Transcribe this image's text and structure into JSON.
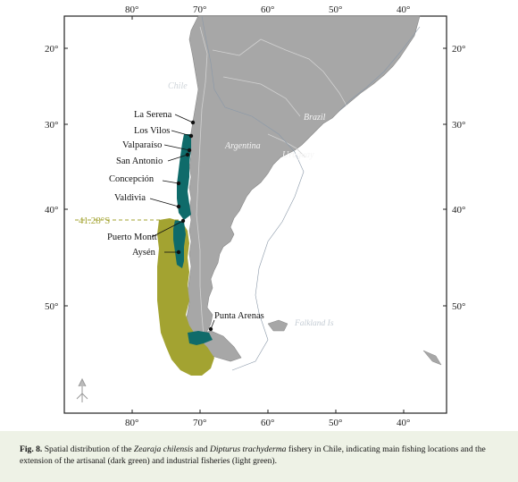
{
  "map": {
    "top_ticks": [
      "80°",
      "70°",
      "60°",
      "50°",
      "40°"
    ],
    "bottom_ticks": [
      "80°",
      "70°",
      "60°",
      "50°",
      "40°"
    ],
    "left_ticks": [
      "20°",
      "30°",
      "40°",
      "50°"
    ],
    "right_ticks": [
      "20°",
      "30°",
      "40°",
      "50°"
    ],
    "countries": {
      "chile": "Chile",
      "brazil": "Brazil",
      "argentina": "Argentina",
      "uruguay": "Uruguay",
      "falklands": "Falkland Is"
    },
    "cities": {
      "la_serena": "La Serena",
      "los_vilos": "Los Vilos",
      "valparaiso": "Valparaíso",
      "san_antonio": "San Antonio",
      "concepcion": "Concepción",
      "valdivia": "Valdivia",
      "puerto_montt": "Puerto Montt",
      "aysen": "Aysén",
      "punta_arenas": "Punta Arenas"
    },
    "latitude_marker": "41.28°S",
    "colors": {
      "land": "#a7a7a7",
      "ocean": "#ffffff",
      "artisanal_fishery": "#0f6b6a",
      "industrial_fishery": "#a3a331",
      "marker_line": "#a3a331"
    }
  },
  "caption": {
    "fig": "Fig. 8.",
    "t1": " Spatial distribution of the ",
    "sp1": "Zearaja chilensis",
    "t2": " and ",
    "sp2": "Dipturus trachyderma",
    "t3": " fishery in Chile, indicating main fishing locations and the extension of the artisanal (dark green) and industrial fisheries (light green)."
  }
}
